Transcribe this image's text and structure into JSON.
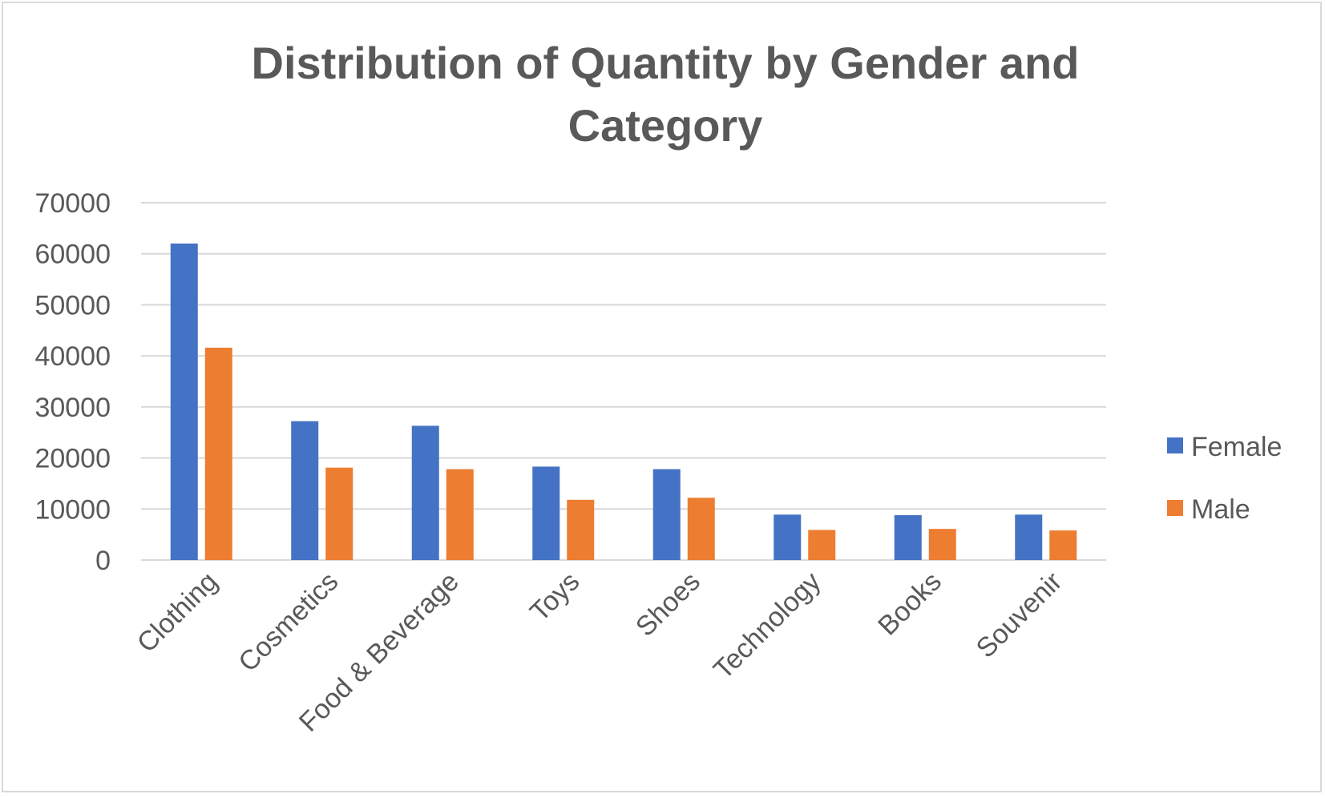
{
  "chart_data": {
    "type": "bar",
    "title": "Distribution of Quantity by Gender and Category",
    "title_lines": [
      "Distribution of Quantity by Gender and",
      "Category"
    ],
    "xlabel": "",
    "ylabel": "",
    "categories": [
      "Clothing",
      "Cosmetics",
      "Food & Beverage",
      "Toys",
      "Shoes",
      "Technology",
      "Books",
      "Souvenir"
    ],
    "series": [
      {
        "name": "Female",
        "color": "#4472c4",
        "values": [
          62000,
          27200,
          26300,
          18300,
          17800,
          8900,
          8800,
          8900
        ]
      },
      {
        "name": "Male",
        "color": "#ed7d31",
        "values": [
          41600,
          18100,
          17800,
          11800,
          12200,
          5900,
          6100,
          5800
        ]
      }
    ],
    "ylim": [
      0,
      70000
    ],
    "yticks": [
      0,
      10000,
      20000,
      30000,
      40000,
      50000,
      60000,
      70000
    ],
    "grid": true,
    "legend_position": "right",
    "gridline_color": "#d9d9d9",
    "axis_color": "#d9d9d9"
  }
}
